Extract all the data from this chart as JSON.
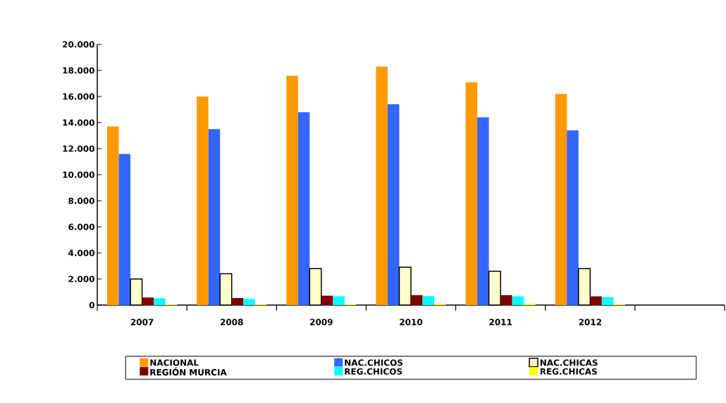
{
  "chart_data": {
    "type": "bar",
    "categories": [
      "2007",
      "2008",
      "2009",
      "2010",
      "2011",
      "2012",
      null
    ],
    "ylim": [
      0,
      20000
    ],
    "yticks": [
      {
        "value": 0,
        "label": "0"
      },
      {
        "value": 2000,
        "label": "2.000"
      },
      {
        "value": 4000,
        "label": "4.000"
      },
      {
        "value": 6000,
        "label": "6.000"
      },
      {
        "value": 8000,
        "label": "8.000"
      },
      {
        "value": 10000,
        "label": "10.000"
      },
      {
        "value": 12000,
        "label": "12.000"
      },
      {
        "value": 14000,
        "label": "14.000"
      },
      {
        "value": 16000,
        "label": "16.000"
      },
      {
        "value": 18000,
        "label": "18.000"
      },
      {
        "value": 20000,
        "label": "20.000"
      }
    ],
    "series": [
      {
        "name": "NACIONAL",
        "color": "#ff9900",
        "values": [
          13700,
          16000,
          17600,
          18300,
          17100,
          16200,
          null
        ]
      },
      {
        "name": "NAC.CHICOS",
        "color": "#3366ff",
        "values": [
          11600,
          13500,
          14800,
          15400,
          14400,
          13400,
          null
        ]
      },
      {
        "name": "NAC.CHICAS",
        "color": "#ffffcc",
        "values": [
          2000,
          2400,
          2800,
          2900,
          2600,
          2800,
          null
        ]
      },
      {
        "name": "REGIÓN MURCIA",
        "color": "#800000",
        "values": [
          580,
          540,
          720,
          760,
          760,
          670,
          null
        ]
      },
      {
        "name": "REG.CHICOS",
        "color": "#00ffff",
        "values": [
          520,
          470,
          670,
          690,
          670,
          610,
          null
        ]
      },
      {
        "name": "REG.CHICAS",
        "color": "#ffff00",
        "values": [
          70,
          70,
          70,
          100,
          100,
          70,
          null
        ]
      }
    ],
    "legend": "bottom",
    "grid": false
  }
}
